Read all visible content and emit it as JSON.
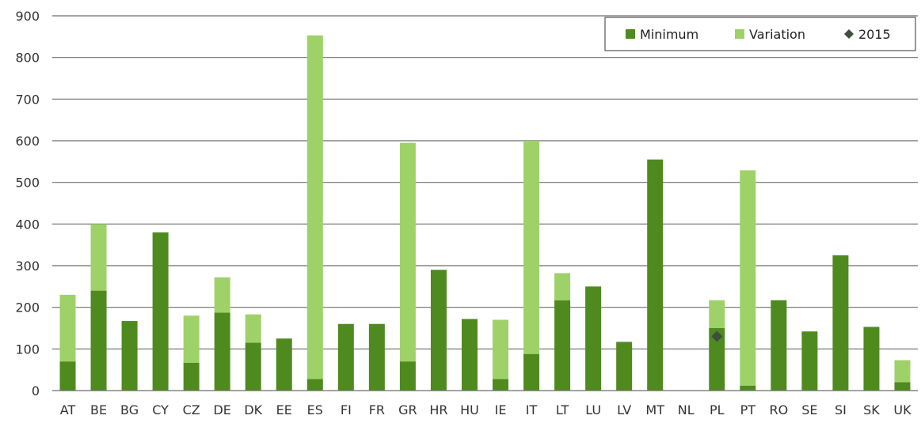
{
  "chart_data": {
    "type": "bar",
    "stacked": true,
    "categories": [
      "AT",
      "BE",
      "BG",
      "CY",
      "CZ",
      "DE",
      "DK",
      "EE",
      "ES",
      "FI",
      "FR",
      "GR",
      "HR",
      "HU",
      "IE",
      "IT",
      "LT",
      "LU",
      "LV",
      "MT",
      "NL",
      "PL",
      "PT",
      "RO",
      "SE",
      "SI",
      "SK",
      "UK"
    ],
    "series": [
      {
        "name": "Minimum",
        "color": "#4f8a1e",
        "values": [
          70,
          240,
          167,
          380,
          67,
          187,
          115,
          125,
          28,
          160,
          160,
          70,
          290,
          172,
          28,
          88,
          217,
          250,
          117,
          555,
          0,
          150,
          12,
          217,
          142,
          325,
          153,
          20
        ]
      },
      {
        "name": "Variation",
        "color": "#9fd169",
        "values": [
          160,
          160,
          0,
          0,
          113,
          85,
          68,
          0,
          825,
          0,
          0,
          525,
          0,
          0,
          142,
          512,
          65,
          0,
          0,
          0,
          0,
          67,
          517,
          0,
          0,
          0,
          0,
          53
        ]
      }
    ],
    "markers": [
      {
        "name": "2015",
        "color": "#3e4e3e",
        "points": [
          {
            "category": "PL",
            "value": 130
          }
        ]
      }
    ],
    "yticks": [
      0,
      100,
      200,
      300,
      400,
      500,
      600,
      700,
      800,
      900
    ],
    "ylim": [
      0,
      900
    ],
    "grid": true,
    "legend_position": "top-right",
    "title": "",
    "xlabel": "",
    "ylabel": ""
  }
}
